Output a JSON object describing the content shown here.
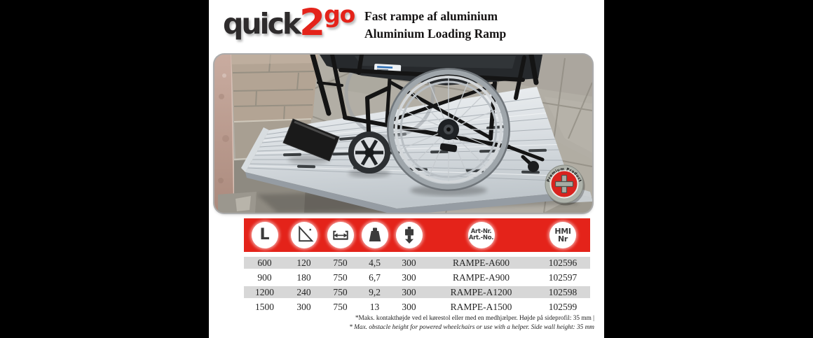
{
  "brand": {
    "logo_quick": "quick",
    "logo_2": "2",
    "logo_go": "go"
  },
  "header": {
    "title_da": "Fast rampe af aluminium",
    "title_en": "Aluminium Loading Ramp"
  },
  "photo": {
    "badge_label": "Premium Product"
  },
  "table": {
    "columns": [
      {
        "id": "length",
        "icon": "length-icon",
        "label": "L"
      },
      {
        "id": "height",
        "icon": "incline-icon"
      },
      {
        "id": "width",
        "icon": "width-icon"
      },
      {
        "id": "weight",
        "icon": "weight-icon"
      },
      {
        "id": "max-load",
        "icon": "max-load-icon"
      },
      {
        "id": "art-no",
        "line1": "Art-Nr.",
        "line2": "Art.-No."
      },
      {
        "id": "hmi-no",
        "line1": "HMI",
        "line2": "Nr"
      }
    ],
    "rows": [
      [
        "600",
        "120",
        "750",
        "4,5",
        "300",
        "RAMPE-A600",
        "102596"
      ],
      [
        "900",
        "180",
        "750",
        "6,7",
        "300",
        "RAMPE-A900",
        "102597"
      ],
      [
        "1200",
        "240",
        "750",
        "9,2",
        "300",
        "RAMPE-A1200",
        "102598"
      ],
      [
        "1500",
        "300",
        "750",
        "13",
        "300",
        "RAMPE-A1500",
        "102599"
      ]
    ]
  },
  "footnotes": {
    "da": "*Maks. kontakthøjde ved el kørestol eller med en medhjælper. Højde på sideprofil: 35 mm |",
    "en": "* Max. obstacle height for powered wheelchairs or use with a helper. Side wall height: 35 mm"
  },
  "colors": {
    "accent_red": "#e4231a",
    "row_gray": "#d7d7d7",
    "logo_dark": "#2e2b2c",
    "canvas_black": "#000000"
  }
}
